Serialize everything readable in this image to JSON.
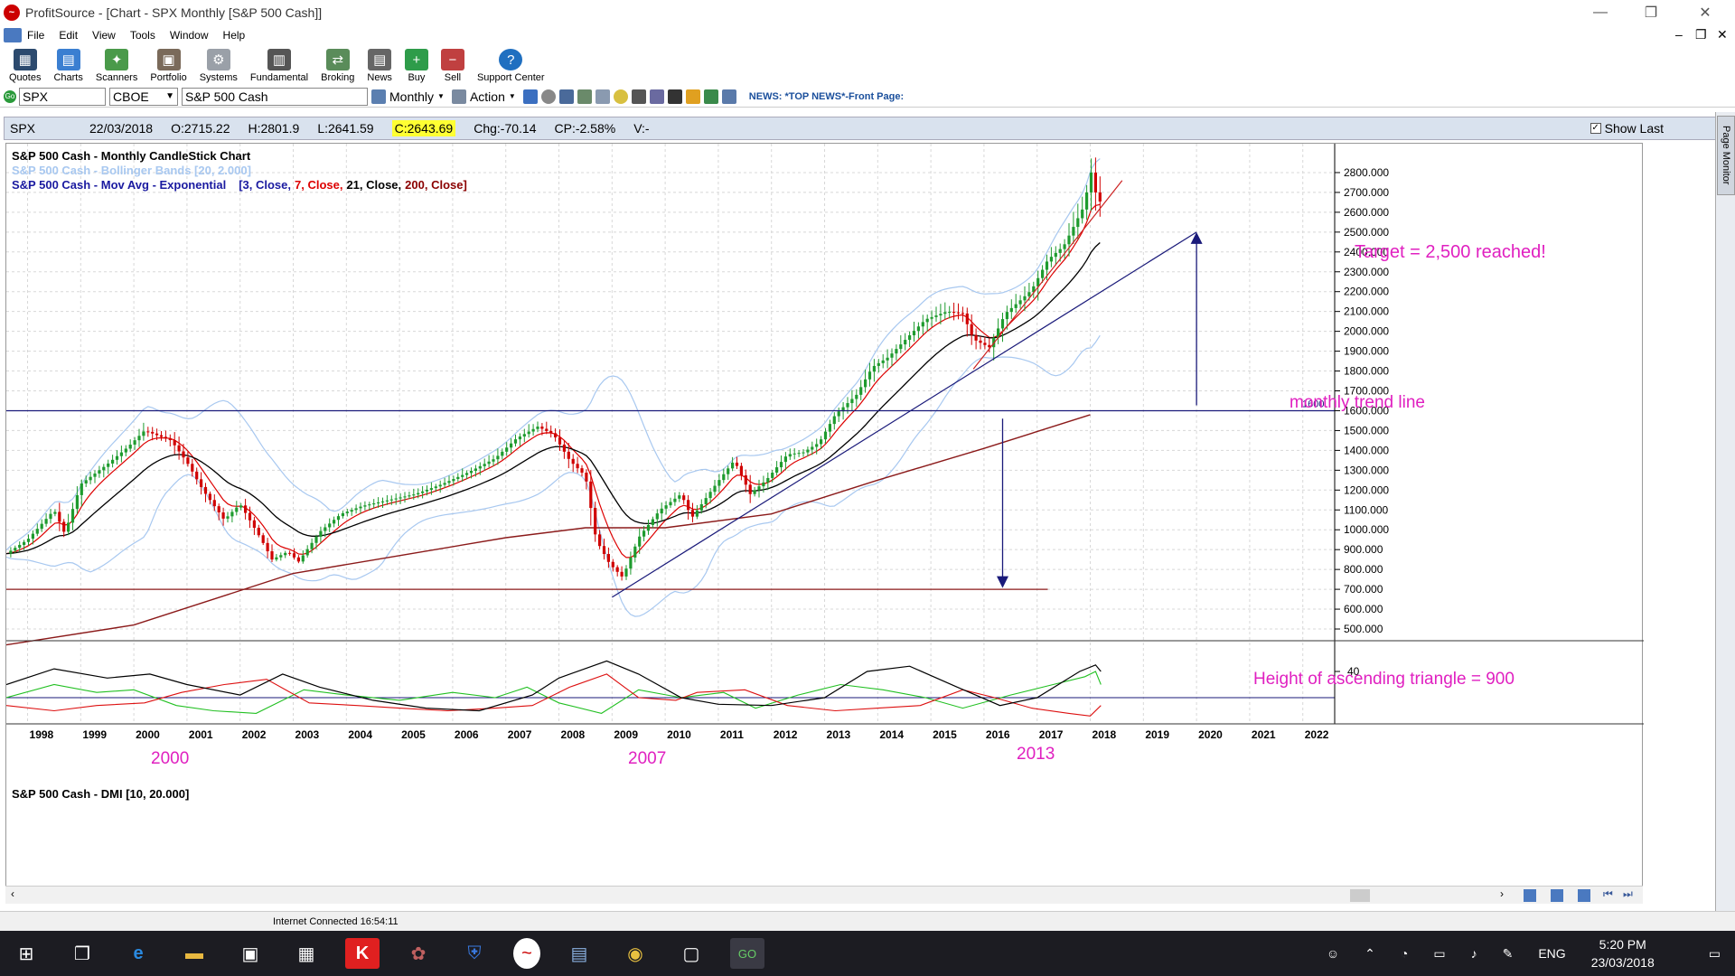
{
  "window": {
    "title": "ProfitSource - [Chart - SPX Monthly [S&P 500 Cash]]"
  },
  "menu": [
    "File",
    "Edit",
    "View",
    "Tools",
    "Window",
    "Help"
  ],
  "toolbar": [
    "Quotes",
    "Charts",
    "Scanners",
    "Portfolio",
    "Systems",
    "Fundamental",
    "Broking",
    "News",
    "Buy",
    "Sell",
    "Support Center"
  ],
  "symbol_bar": {
    "symbol": "SPX",
    "exchange": "CBOE",
    "name": "S&P 500 Cash",
    "period": "Monthly",
    "action": "Action",
    "news": "NEWS: *TOP NEWS*-Front Page:"
  },
  "infobar": {
    "symbol": "SPX",
    "date": "22/03/2018",
    "open": "O:2715.22",
    "high": "H:2801.9",
    "low": "L:2641.59",
    "close": "C:2643.69",
    "change": "Chg:-70.14",
    "cp": "CP:-2.58%",
    "volume": "V:-",
    "show_last": "Show Last"
  },
  "side_tab": "Page Monitor",
  "chart_data": {
    "type": "candlestick",
    "legend": {
      "title": "S&P 500 Cash - Monthly CandleStick Chart",
      "bollinger": "S&P 500 Cash - Bollinger Bands [20, 2.000]",
      "mavg_prefix": "S&P 500 Cash - Mov Avg - Exponential",
      "mavg_params": [
        {
          "text": "[3, Close,",
          "color": "#1a1aa0"
        },
        {
          "text": "7, Close,",
          "color": "#dd0000"
        },
        {
          "text": "21, Close,",
          "color": "#000000"
        },
        {
          "text": "200, Close]",
          "color": "#8b0000"
        }
      ]
    },
    "y_ticks": [
      500,
      600,
      700,
      800,
      900,
      1000,
      1100,
      1200,
      1300,
      1400,
      1500,
      1600,
      1700,
      1800,
      1900,
      2000,
      2100,
      2200,
      2300,
      2400,
      2500,
      2600,
      2700,
      2800
    ],
    "y_tick_labels": [
      "500.000",
      "600.000",
      "700.000",
      "800.000",
      "900.000",
      "1000.000",
      "1100.000",
      "1200.000",
      "1300.000",
      "1400.000",
      "1500.000",
      "1600.000",
      "1700.000",
      "1800.000",
      "1900.000",
      "2000.000",
      "2100.000",
      "2200.000",
      "2300.000",
      "2400.000",
      "2500.000",
      "2600.000",
      "2700.000",
      "2800.000"
    ],
    "ylim": [
      450,
      2900
    ],
    "x_years": [
      "1998",
      "1999",
      "2000",
      "2001",
      "2002",
      "2003",
      "2004",
      "2005",
      "2006",
      "2007",
      "2008",
      "2009",
      "2010",
      "2011",
      "2012",
      "2013",
      "2014",
      "2015",
      "2016",
      "2017",
      "2018",
      "2019",
      "2020",
      "2021",
      "2022"
    ],
    "xlim": [
      1997.6,
      2022.6
    ],
    "resistance_line": {
      "value": 1600,
      "label": "1600"
    },
    "support_line": 700,
    "trend_line": {
      "x0": 2009.0,
      "y0": 660,
      "x1": 2020.0,
      "y1": 2500
    },
    "price_path": [
      [
        1997.6,
        880
      ],
      [
        1998.0,
        950
      ],
      [
        1998.5,
        1100
      ],
      [
        1998.7,
        980
      ],
      [
        1999.0,
        1230
      ],
      [
        1999.5,
        1330
      ],
      [
        1999.9,
        1420
      ],
      [
        2000.2,
        1500
      ],
      [
        2000.7,
        1450
      ],
      [
        2001.0,
        1340
      ],
      [
        2001.3,
        1200
      ],
      [
        2001.7,
        1050
      ],
      [
        2002.0,
        1130
      ],
      [
        2002.4,
        950
      ],
      [
        2002.6,
        850
      ],
      [
        2002.9,
        890
      ],
      [
        2003.1,
        840
      ],
      [
        2003.5,
        990
      ],
      [
        2003.9,
        1080
      ],
      [
        2004.3,
        1120
      ],
      [
        2004.8,
        1150
      ],
      [
        2005.3,
        1180
      ],
      [
        2005.8,
        1230
      ],
      [
        2006.3,
        1290
      ],
      [
        2006.8,
        1360
      ],
      [
        2007.2,
        1460
      ],
      [
        2007.6,
        1520
      ],
      [
        2007.9,
        1480
      ],
      [
        2008.2,
        1350
      ],
      [
        2008.5,
        1270
      ],
      [
        2008.7,
        950
      ],
      [
        2008.95,
        830
      ],
      [
        2009.2,
        760
      ],
      [
        2009.5,
        960
      ],
      [
        2009.9,
        1100
      ],
      [
        2010.3,
        1180
      ],
      [
        2010.5,
        1060
      ],
      [
        2010.9,
        1210
      ],
      [
        2011.3,
        1350
      ],
      [
        2011.6,
        1180
      ],
      [
        2011.9,
        1250
      ],
      [
        2012.3,
        1380
      ],
      [
        2012.6,
        1390
      ],
      [
        2012.9,
        1440
      ],
      [
        2013.2,
        1580
      ],
      [
        2013.6,
        1680
      ],
      [
        2013.9,
        1820
      ],
      [
        2014.2,
        1870
      ],
      [
        2014.6,
        1980
      ],
      [
        2014.9,
        2060
      ],
      [
        2015.3,
        2100
      ],
      [
        2015.6,
        2090
      ],
      [
        2015.8,
        1960
      ],
      [
        2016.1,
        1920
      ],
      [
        2016.4,
        2090
      ],
      [
        2016.7,
        2160
      ],
      [
        2016.9,
        2210
      ],
      [
        2017.2,
        2360
      ],
      [
        2017.5,
        2430
      ],
      [
        2017.9,
        2640
      ],
      [
        2018.0,
        2820
      ],
      [
        2018.1,
        2700
      ],
      [
        2018.2,
        2645
      ]
    ],
    "ema200": [
      [
        1997.6,
        420
      ],
      [
        2000.0,
        520
      ],
      [
        2003.0,
        780
      ],
      [
        2005.0,
        870
      ],
      [
        2007.0,
        960
      ],
      [
        2008.5,
        1010
      ],
      [
        2010.0,
        1010
      ],
      [
        2012.0,
        1080
      ],
      [
        2014.0,
        1250
      ],
      [
        2016.0,
        1410
      ],
      [
        2018.0,
        1580
      ]
    ],
    "annotations": {
      "target": "Target = 2,500 reached!",
      "trend": "monthly trend line",
      "triangle": "Height of ascending triangle = 900",
      "year_2000": "2000",
      "year_2007": "2007",
      "year_2013": "2013"
    },
    "dmi": {
      "title": "S&P 500 Cash - DMI [10, 20.000]",
      "level": "40",
      "adx": [
        [
          1997.6,
          30
        ],
        [
          1998.5,
          42
        ],
        [
          1999.5,
          35
        ],
        [
          2000.3,
          38
        ],
        [
          2001.0,
          30
        ],
        [
          2002.0,
          22
        ],
        [
          2002.8,
          38
        ],
        [
          2003.5,
          28
        ],
        [
          2004.5,
          18
        ],
        [
          2005.5,
          12
        ],
        [
          2006.5,
          10
        ],
        [
          2007.5,
          22
        ],
        [
          2008.0,
          35
        ],
        [
          2008.9,
          48
        ],
        [
          2009.5,
          38
        ],
        [
          2010.3,
          20
        ],
        [
          2011.0,
          15
        ],
        [
          2012.0,
          14
        ],
        [
          2013.0,
          20
        ],
        [
          2013.8,
          40
        ],
        [
          2014.6,
          44
        ],
        [
          2015.5,
          28
        ],
        [
          2016.3,
          14
        ],
        [
          2017.0,
          20
        ],
        [
          2017.8,
          40
        ],
        [
          2018.1,
          45
        ],
        [
          2018.2,
          40
        ]
      ],
      "plus_di": [
        [
          1997.6,
          20
        ],
        [
          1998.5,
          30
        ],
        [
          1999.3,
          24
        ],
        [
          2000.0,
          26
        ],
        [
          2000.8,
          14
        ],
        [
          2001.5,
          10
        ],
        [
          2002.3,
          8
        ],
        [
          2003.2,
          26
        ],
        [
          2004.0,
          22
        ],
        [
          2005.0,
          18
        ],
        [
          2006.0,
          24
        ],
        [
          2006.8,
          20
        ],
        [
          2007.4,
          28
        ],
        [
          2008.0,
          16
        ],
        [
          2008.8,
          8
        ],
        [
          2009.5,
          26
        ],
        [
          2010.3,
          20
        ],
        [
          2011.1,
          24
        ],
        [
          2011.7,
          12
        ],
        [
          2012.5,
          22
        ],
        [
          2013.3,
          30
        ],
        [
          2014.1,
          26
        ],
        [
          2014.9,
          20
        ],
        [
          2015.6,
          12
        ],
        [
          2016.5,
          22
        ],
        [
          2017.3,
          30
        ],
        [
          2017.9,
          36
        ],
        [
          2018.1,
          40
        ],
        [
          2018.2,
          30
        ]
      ],
      "minus_di": [
        [
          1997.6,
          14
        ],
        [
          1998.5,
          10
        ],
        [
          1999.3,
          14
        ],
        [
          2000.2,
          16
        ],
        [
          2000.9,
          24
        ],
        [
          2001.7,
          30
        ],
        [
          2002.5,
          34
        ],
        [
          2003.3,
          16
        ],
        [
          2004.2,
          14
        ],
        [
          2005.0,
          12
        ],
        [
          2005.9,
          10
        ],
        [
          2006.8,
          12
        ],
        [
          2007.5,
          14
        ],
        [
          2008.2,
          28
        ],
        [
          2008.9,
          38
        ],
        [
          2009.5,
          20
        ],
        [
          2010.2,
          18
        ],
        [
          2010.6,
          24
        ],
        [
          2011.5,
          26
        ],
        [
          2012.3,
          14
        ],
        [
          2013.2,
          10
        ],
        [
          2014.0,
          12
        ],
        [
          2014.8,
          14
        ],
        [
          2015.6,
          26
        ],
        [
          2016.2,
          20
        ],
        [
          2016.9,
          12
        ],
        [
          2017.6,
          8
        ],
        [
          2018.0,
          6
        ],
        [
          2018.2,
          14
        ]
      ]
    }
  },
  "status": {
    "text": "Internet Connected 16:54:11"
  },
  "taskbar": {
    "lang": "ENG",
    "time": "5:20 PM",
    "date": "23/03/2018"
  }
}
